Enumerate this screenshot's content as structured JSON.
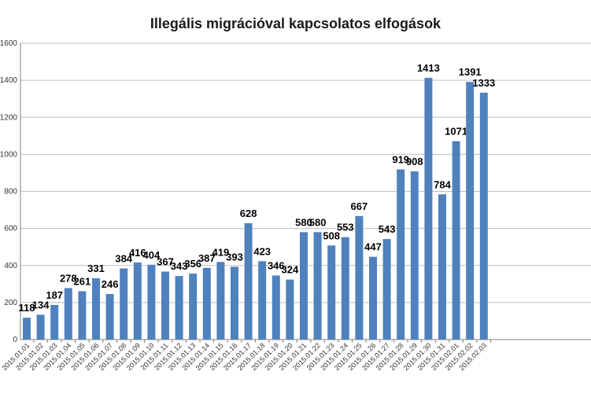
{
  "chart_data": {
    "type": "bar",
    "title": "Illegális migrációval kapcsolatos elfogások",
    "xlabel": "",
    "ylabel": "",
    "ylim": [
      0,
      1600
    ],
    "yticks": [
      0,
      200,
      400,
      600,
      800,
      1000,
      1200,
      1400,
      1600
    ],
    "ytick_labels": [
      "0",
      "200",
      "400",
      "600",
      "800",
      "1000",
      "1200",
      "1400",
      "1600"
    ],
    "grid": true,
    "bar_color": "#4f81bd",
    "categories": [
      "2015.01.01",
      "2015.01.02",
      "2015.01.03",
      "2015.01.04",
      "2015.01.05",
      "2015.01.06",
      "2015.01.07",
      "2015.01.08",
      "2015.01.09",
      "2015.01.10",
      "2015.01.11",
      "2015.01.12",
      "2015.01.13",
      "2015.01.14",
      "2015.01.15",
      "2015.01.16",
      "2015.01.17",
      "2015.01.18",
      "2015.01.19",
      "2015.01.20",
      "2015.01.21",
      "2015.01.22",
      "2015.01.23",
      "2015.01.24",
      "2015.01.25",
      "2015.01.26",
      "2015.01.27",
      "2015.01.28",
      "2015.01.29",
      "2015.01.30",
      "2015.01.31",
      "2015.02.01",
      "2015.02.02",
      "2015.02.03"
    ],
    "values": [
      118,
      134,
      187,
      278,
      261,
      331,
      246,
      384,
      416,
      404,
      367,
      343,
      356,
      387,
      419,
      393,
      628,
      423,
      346,
      324,
      580,
      580,
      508,
      553,
      667,
      447,
      543,
      919,
      908,
      1413,
      784,
      1071,
      1391,
      1333
    ],
    "data_labels": [
      "118",
      "134",
      "187",
      "278",
      "261",
      "331",
      "246",
      "384",
      "416",
      "404",
      "367",
      "343",
      "356",
      "387",
      "419",
      "393",
      "628",
      "423",
      "346",
      "324",
      "580",
      "580",
      "508",
      "553",
      "667",
      "447",
      "543",
      "919",
      "908",
      "1413",
      "784",
      "1071",
      "1391",
      "1333"
    ]
  }
}
